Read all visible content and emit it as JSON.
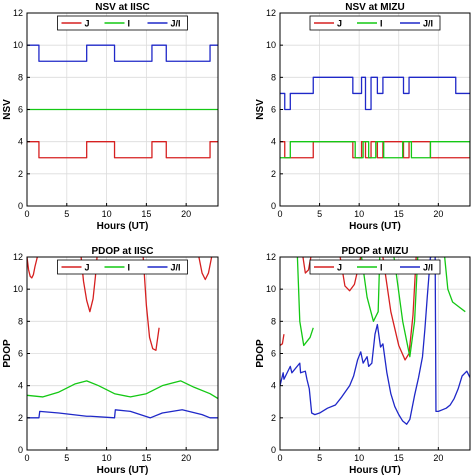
{
  "colors": {
    "J": "#d62020",
    "I": "#14c814",
    "J_I": "#1f28c8",
    "grid": "#dcdcdc",
    "axis": "#000000"
  },
  "chart_data": [
    {
      "id": "nsv-iisc",
      "type": "line",
      "title": "NSV at IISC",
      "xlabel": "Hours (UT)",
      "ylabel": "NSV",
      "xlim": [
        0,
        24
      ],
      "ylim": [
        0,
        12
      ],
      "xticks": [
        "0",
        "5",
        "10",
        "15",
        "20"
      ],
      "yticks": [
        "0",
        "2",
        "4",
        "6",
        "8",
        "10",
        "12"
      ],
      "grid": true,
      "legend": "top",
      "series": [
        {
          "name": "J",
          "color": "red",
          "step": true,
          "x": [
            0,
            1.5,
            7.5,
            11,
            15.7,
            17.5,
            23,
            24
          ],
          "y": [
            4,
            3,
            4,
            3,
            4,
            3,
            4,
            4
          ]
        },
        {
          "name": "I",
          "color": "green",
          "step": true,
          "x": [
            0,
            24
          ],
          "y": [
            6,
            6
          ]
        },
        {
          "name": "J/I",
          "color": "blue",
          "step": true,
          "x": [
            0,
            1.5,
            7.5,
            11,
            15.7,
            17.5,
            23,
            24
          ],
          "y": [
            10,
            9,
            10,
            9,
            10,
            9,
            10,
            10
          ]
        }
      ]
    },
    {
      "id": "nsv-mizu",
      "type": "line",
      "title": "NSV at MIZU",
      "xlabel": "Hours (UT)",
      "ylabel": "NSV",
      "xlim": [
        0,
        24
      ],
      "ylim": [
        0,
        12
      ],
      "xticks": [
        "0",
        "5",
        "10",
        "15",
        "20"
      ],
      "yticks": [
        "0",
        "2",
        "4",
        "6",
        "8",
        "10",
        "12"
      ],
      "grid": true,
      "legend": "top",
      "series": [
        {
          "name": "J",
          "color": "red",
          "step": true,
          "x": [
            0,
            0.6,
            4.2,
            9.2,
            10.3,
            10.8,
            11.5,
            12.3,
            13,
            15.6,
            16.3,
            19,
            24
          ],
          "y": [
            4,
            3,
            4,
            3,
            4,
            3,
            4,
            3,
            4,
            3,
            4,
            3,
            3
          ]
        },
        {
          "name": "I",
          "color": "green",
          "step": true,
          "x": [
            0,
            1.3,
            9.5,
            10.5,
            11.2,
            12.1,
            13.1,
            15.5,
            16.6,
            19,
            24
          ],
          "y": [
            3,
            4,
            3,
            4,
            3,
            4,
            3,
            4,
            3,
            4,
            3
          ]
        },
        {
          "name": "J/I",
          "color": "blue",
          "step": true,
          "x": [
            0,
            0.6,
            1.3,
            4.2,
            9.2,
            10.3,
            10.8,
            11.5,
            12.3,
            13,
            15.6,
            16.3,
            19,
            22.2,
            24
          ],
          "y": [
            7,
            6,
            7,
            8,
            7,
            8,
            6,
            8,
            7,
            8,
            7,
            8,
            8,
            7,
            7
          ]
        }
      ]
    },
    {
      "id": "pdop-iisc",
      "type": "line",
      "title": "PDOP at IISC",
      "xlabel": "Hours (UT)",
      "ylabel": "PDOP",
      "xlim": [
        0,
        24
      ],
      "ylim": [
        0,
        12
      ],
      "xticks": [
        "0",
        "5",
        "10",
        "15",
        "20"
      ],
      "yticks": [
        "0",
        "2",
        "4",
        "6",
        "8",
        "10",
        "12"
      ],
      "grid": true,
      "legend": "top",
      "series": [
        {
          "name": "J",
          "color": "red",
          "segments": [
            {
              "x": [
                0,
                0.2,
                0.4,
                0.6,
                0.8,
                1.0,
                1.3
              ],
              "y": [
                12,
                11.2,
                10.8,
                10.7,
                10.9,
                11.4,
                12
              ]
            },
            {
              "x": [
                6.8,
                7.1,
                7.5,
                7.9,
                8.3,
                8.6,
                8.8
              ],
              "y": [
                12,
                10.5,
                9.3,
                8.6,
                9.4,
                10.8,
                12
              ]
            },
            {
              "x": [
                14.6,
                15.0,
                15.4,
                15.8,
                16.2,
                16.6
              ],
              "y": [
                12,
                9.0,
                7.0,
                6.3,
                6.2,
                7.6
              ]
            },
            {
              "x": [
                21.6,
                22.0,
                22.4,
                22.8,
                23.2
              ],
              "y": [
                12,
                11.0,
                10.6,
                11.0,
                12
              ]
            }
          ]
        },
        {
          "name": "I",
          "color": "green",
          "segments": [
            {
              "x": [
                0,
                2,
                4,
                6,
                7.5,
                9,
                11,
                13,
                15,
                17,
                19.3,
                21,
                23,
                24
              ],
              "y": [
                3.4,
                3.3,
                3.6,
                4.1,
                4.3,
                4.0,
                3.5,
                3.3,
                3.5,
                4.0,
                4.3,
                3.9,
                3.5,
                3.2
              ]
            }
          ]
        },
        {
          "name": "J/I",
          "color": "blue",
          "segments": [
            {
              "x": [
                0,
                1.5,
                1.6,
                4,
                7.5,
                8,
                11,
                11.1,
                13,
                15.5,
                17,
                19.5,
                22,
                23,
                24
              ],
              "y": [
                2.0,
                2.0,
                2.4,
                2.3,
                2.1,
                2.1,
                2.0,
                2.5,
                2.4,
                2.0,
                2.3,
                2.5,
                2.2,
                2.0,
                2.0
              ]
            }
          ]
        }
      ]
    },
    {
      "id": "pdop-mizu",
      "type": "line",
      "title": "PDOP at MIZU",
      "xlabel": "Hours (UT)",
      "ylabel": "PDOP",
      "xlim": [
        0,
        24
      ],
      "ylim": [
        0,
        12
      ],
      "xticks": [
        "0",
        "5",
        "10",
        "15",
        "20"
      ],
      "yticks": [
        "0",
        "2",
        "4",
        "6",
        "8",
        "10",
        "12"
      ],
      "grid": true,
      "legend": "top",
      "series": [
        {
          "name": "J",
          "color": "red",
          "segments": [
            {
              "x": [
                0,
                0.3,
                0.5
              ],
              "y": [
                6.5,
                6.6,
                7.2
              ]
            },
            {
              "x": [
                2.9,
                3.2,
                3.6,
                3.9
              ],
              "y": [
                12,
                11.0,
                11.2,
                12
              ]
            },
            {
              "x": [
                7.6,
                8.2,
                8.8,
                9.4,
                10.2
              ],
              "y": [
                12,
                10.2,
                9.9,
                10.3,
                12
              ]
            },
            {
              "x": [
                13.0,
                14.0,
                15.0,
                15.8,
                16.3,
                16.8,
                17.2
              ],
              "y": [
                12,
                8.6,
                6.5,
                5.6,
                6.0,
                8.4,
                12
              ]
            }
          ]
        },
        {
          "name": "I",
          "color": "green",
          "segments": [
            {
              "x": [
                2.2,
                2.5,
                3.0,
                3.8,
                4.2
              ],
              "y": [
                12,
                8.0,
                6.5,
                7.0,
                7.6
              ]
            },
            {
              "x": [
                10.3,
                11.0,
                11.8,
                12.4,
                12.6
              ],
              "y": [
                12,
                9.5,
                8.0,
                8.6,
                12
              ]
            },
            {
              "x": [
                14.4,
                15.5,
                16.4,
                17.0,
                17.4
              ],
              "y": [
                12,
                8.0,
                5.8,
                8.0,
                12
              ]
            },
            {
              "x": [
                20.8,
                21.2,
                21.8,
                22.6,
                23.4
              ],
              "y": [
                12,
                10.0,
                9.2,
                8.9,
                8.6
              ]
            }
          ]
        },
        {
          "name": "J/I",
          "color": "blue",
          "segments": [
            {
              "x": [
                0,
                0.4,
                0.5,
                1.3,
                1.5,
                2.5,
                2.6,
                3.2,
                3.4,
                3.7,
                4.0,
                4.4,
                5.0,
                6.0,
                7.0,
                7.8,
                8.8,
                9.3,
                9.8,
                10.2,
                10.5,
                11.0,
                11.2,
                11.6,
                12.0,
                12.3,
                12.7,
                13.0,
                13.5,
                14.0,
                14.5,
                15.0,
                15.5,
                16.0,
                16.4,
                17.0,
                17.5,
                18.0,
                18.3,
                18.6,
                19.0,
                19.2
              ],
              "y": [
                4.0,
                4.8,
                4.4,
                5.2,
                4.8,
                5.4,
                4.8,
                4.9,
                4.4,
                3.8,
                2.3,
                2.2,
                2.3,
                2.6,
                2.8,
                3.3,
                4.0,
                4.6,
                5.6,
                6.1,
                5.4,
                5.8,
                5.2,
                5.4,
                7.2,
                7.8,
                6.4,
                6.6,
                4.8,
                3.5,
                2.7,
                2.2,
                1.8,
                1.6,
                1.9,
                3.4,
                4.5,
                5.8,
                7.5,
                9.5,
                12,
                12
              ]
            },
            {
              "x": [
                19.6,
                19.7,
                20.0,
                20.5,
                21.0,
                21.5,
                22.0,
                22.5,
                23.0,
                23.6,
                24
              ],
              "y": [
                12,
                2.4,
                2.4,
                2.5,
                2.6,
                2.8,
                3.2,
                3.8,
                4.6,
                4.9,
                4.5
              ]
            }
          ]
        }
      ]
    }
  ]
}
